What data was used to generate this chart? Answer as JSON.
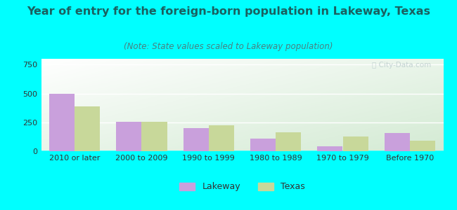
{
  "title": "Year of entry for the foreign-born population in Lakeway, Texas",
  "subtitle": "(Note: State values scaled to Lakeway population)",
  "categories": [
    "2010 or later",
    "2000 to 2009",
    "1990 to 1999",
    "1980 to 1989",
    "1970 to 1979",
    "Before 1970"
  ],
  "lakeway_values": [
    495,
    255,
    200,
    110,
    45,
    155
  ],
  "texas_values": [
    385,
    255,
    225,
    165,
    125,
    90
  ],
  "lakeway_color": "#c9a0dc",
  "texas_color": "#c8d89a",
  "ylim": [
    0,
    800
  ],
  "yticks": [
    0,
    250,
    500,
    750
  ],
  "background_color": "#00ffff",
  "bar_width": 0.38,
  "legend_labels": [
    "Lakeway",
    "Texas"
  ],
  "title_fontsize": 11.5,
  "subtitle_fontsize": 8.5,
  "tick_fontsize": 8,
  "legend_fontsize": 9,
  "title_color": "#1a6060",
  "subtitle_color": "#4a8080",
  "watermark_color": "#c0d0d0"
}
